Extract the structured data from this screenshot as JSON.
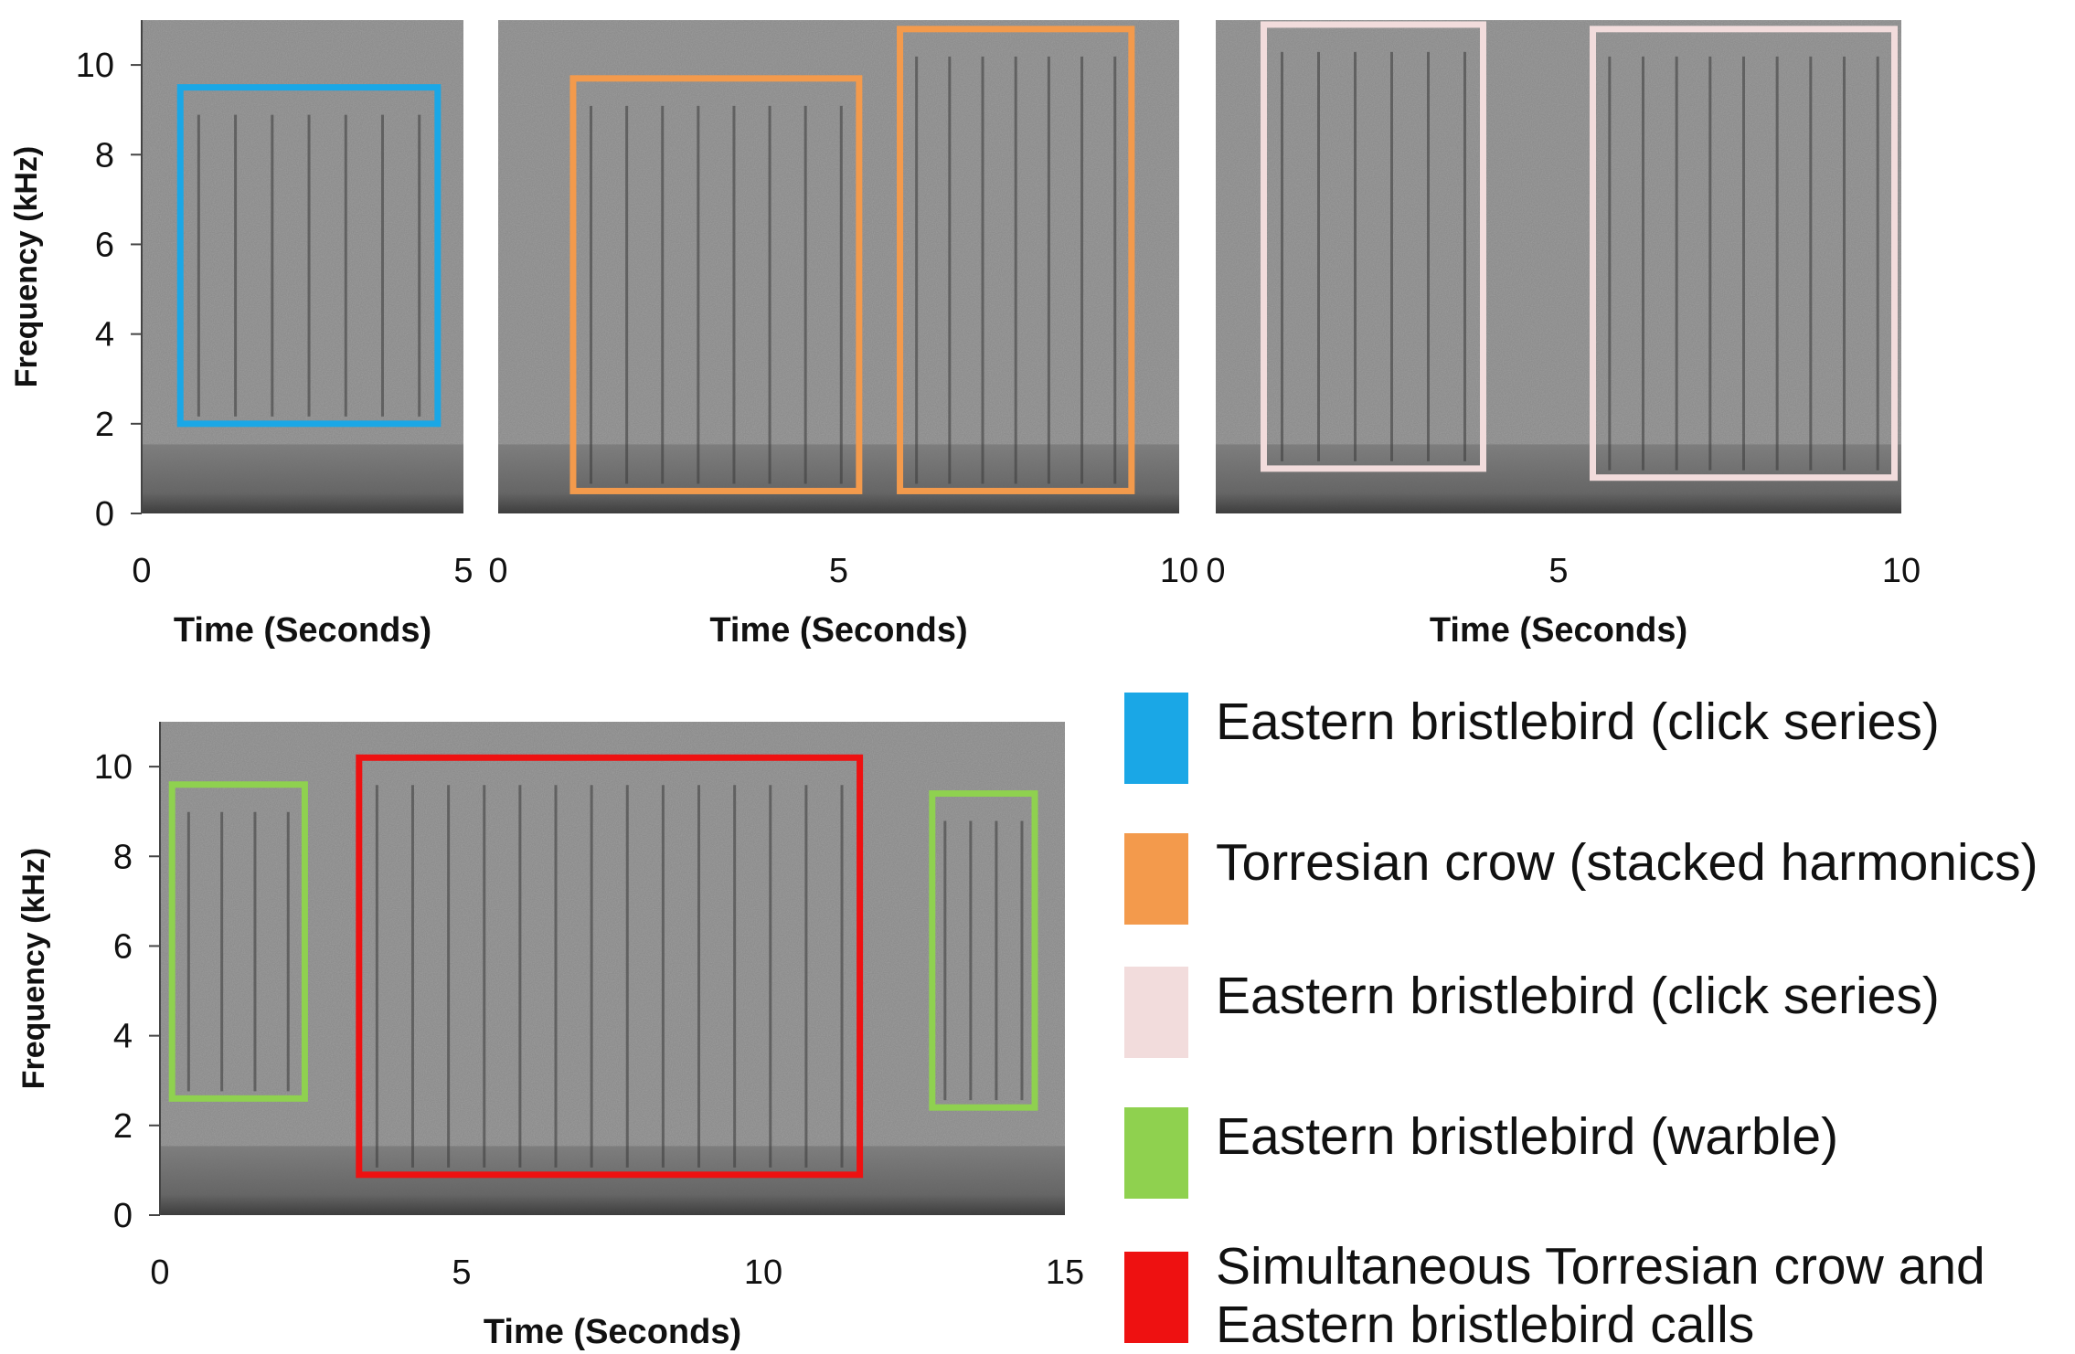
{
  "chart_data": [
    {
      "type": "spectrogram",
      "xlabel": "Time (Seconds)",
      "ylabel": "Frequency (kHz)",
      "xlim": [
        0,
        5
      ],
      "ylim": [
        0,
        11
      ],
      "x_ticks": [
        "0",
        "5"
      ],
      "y_ticks": [
        "0",
        "2",
        "4",
        "6",
        "8",
        "10"
      ],
      "annotations": [
        {
          "label": "Eastern bristlebird (click series)",
          "color": "#1aa7e6",
          "x": [
            0.6,
            4.6
          ],
          "y": [
            2,
            9.5
          ]
        }
      ]
    },
    {
      "type": "spectrogram",
      "xlabel": "Time (Seconds)",
      "ylabel": "",
      "xlim": [
        0,
        10
      ],
      "ylim": [
        0,
        11
      ],
      "x_ticks": [
        "0",
        "5",
        "10"
      ],
      "y_ticks": [],
      "annotations": [
        {
          "label": "Torresian crow (stacked harmonics)",
          "color": "#f39a4c",
          "x": [
            1.1,
            5.3
          ],
          "y": [
            0.5,
            9.7
          ]
        },
        {
          "label": "Torresian crow (stacked harmonics)",
          "color": "#f39a4c",
          "x": [
            5.9,
            9.3
          ],
          "y": [
            0.5,
            10.8
          ]
        }
      ]
    },
    {
      "type": "spectrogram",
      "xlabel": "Time (Seconds)",
      "ylabel": "",
      "xlim": [
        0,
        10
      ],
      "ylim": [
        0,
        11
      ],
      "x_ticks": [
        "0",
        "5",
        "10"
      ],
      "y_ticks": [],
      "annotations": [
        {
          "label": "Eastern bristlebird (click series)",
          "color": "#f2dcdc",
          "x": [
            0.7,
            3.9
          ],
          "y": [
            1,
            10.9
          ]
        },
        {
          "label": "Eastern bristlebird (click series)",
          "color": "#f2dcdc",
          "x": [
            5.5,
            9.9
          ],
          "y": [
            0.8,
            10.8
          ]
        }
      ]
    },
    {
      "type": "spectrogram",
      "xlabel": "Time (Seconds)",
      "ylabel": "Frequency (kHz)",
      "xlim": [
        0,
        15
      ],
      "ylim": [
        0,
        11
      ],
      "x_ticks": [
        "0",
        "5",
        "10",
        "15"
      ],
      "y_ticks": [
        "0",
        "2",
        "4",
        "6",
        "8",
        "10"
      ],
      "annotations": [
        {
          "label": "Eastern bristlebird (warble)",
          "color": "#8fd14f",
          "x": [
            0.2,
            2.4
          ],
          "y": [
            2.6,
            9.6
          ]
        },
        {
          "label": "Simultaneous Torresian crow and Eastern bristlebird calls",
          "color": "#ee1111",
          "x": [
            3.3,
            11.6
          ],
          "y": [
            0.9,
            10.2
          ]
        },
        {
          "label": "Eastern bristlebird (warble)",
          "color": "#8fd14f",
          "x": [
            12.8,
            14.5
          ],
          "y": [
            2.4,
            9.4
          ]
        }
      ]
    }
  ],
  "legend": [
    {
      "label": "Eastern bristlebird (click series)",
      "color": "#1aa7e6"
    },
    {
      "label": "Torresian crow  (stacked harmonics)",
      "color": "#f39a4c"
    },
    {
      "label": "Eastern bristlebird (click series)",
      "color": "#f2dcdc"
    },
    {
      "label": "Eastern bristlebird  (warble)",
      "color": "#8fd14f"
    },
    {
      "label": "Simultaneous Torresian crow and Eastern bristlebird calls",
      "color": "#ee1111"
    }
  ]
}
